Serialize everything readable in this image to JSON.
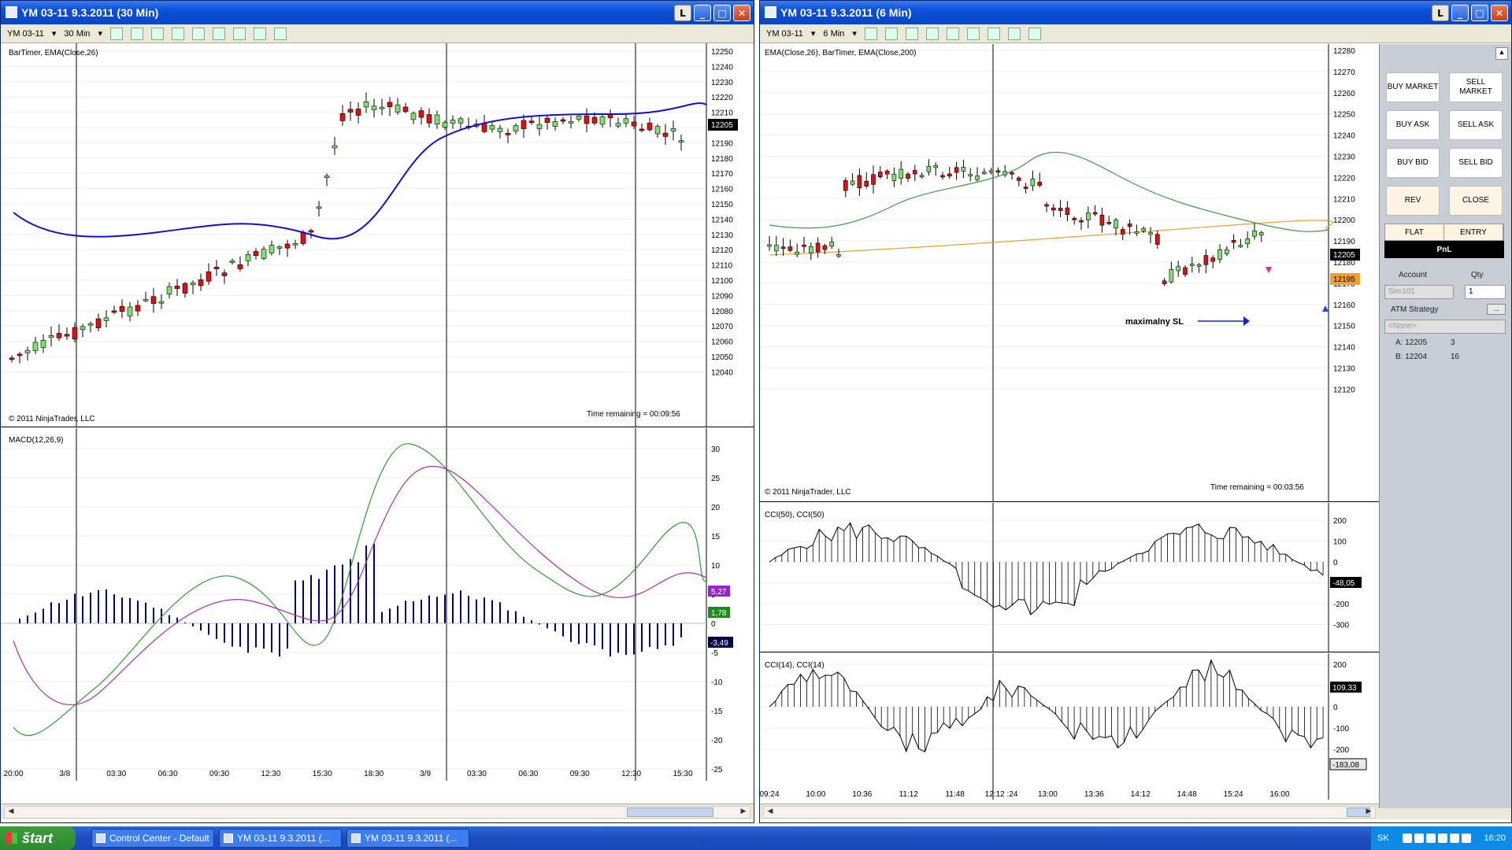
{
  "left_window": {
    "title": "YM 03-11  9.3.2011 (30 Min)",
    "toolbar": {
      "instrument": "YM 03-11",
      "interval": "30 Min"
    },
    "price_panel": {
      "indicator_label": "BarTimer, EMA(Close,26)",
      "copyright": "© 2011 NinjaTrader, LLC",
      "time_remaining": "Time remaining = 00:09:56",
      "y_ticks": [
        "12250",
        "12240",
        "12230",
        "12220",
        "12210",
        "12200",
        "12190",
        "12180",
        "12170",
        "12160",
        "12150",
        "12140",
        "12130",
        "12120",
        "12110",
        "12100",
        "12090",
        "12080",
        "12070",
        "12060",
        "12050",
        "12040"
      ],
      "last_price": "12205"
    },
    "macd_panel": {
      "label": "MACD(12,26,9)",
      "y_ticks": [
        "30",
        "25",
        "20",
        "15",
        "10",
        "5",
        "0",
        "-5",
        "-10",
        "-15",
        "-20",
        "-25"
      ],
      "badges": {
        "avg": "5,27",
        "macd": "1,78",
        "diff": "-3,49"
      }
    },
    "x_ticks": [
      "20:00",
      "3/8",
      "03:30",
      "06:30",
      "09:30",
      "12:30",
      "15:30",
      "18:30",
      "3/9",
      "03:30",
      "06:30",
      "09:30",
      "12:30",
      "15:30"
    ]
  },
  "right_window": {
    "title": "YM 03-11  9.3.2011 (6 Min)",
    "toolbar": {
      "instrument": "YM 03-11",
      "interval": "6 Min"
    },
    "price_panel": {
      "indicator_label": "EMA(Close,26), BarTimer, EMA(Close,200)",
      "copyright": "© 2011 NinjaTrader, LLC",
      "time_remaining": "Time remaining = 00:03:56",
      "annotation": "maximalny SL",
      "y_ticks": [
        "12280",
        "12270",
        "12260",
        "12250",
        "12240",
        "12230",
        "12220",
        "12210",
        "12200",
        "12190",
        "12180",
        "12170",
        "12160",
        "12150",
        "12140",
        "12130",
        "12120"
      ],
      "last_price": "12205",
      "ema200_price": "12195"
    },
    "cci50_panel": {
      "label": "CCI(50), CCI(50)",
      "y_ticks": [
        "200",
        "100",
        "0",
        "-100",
        "-200",
        "-300"
      ],
      "badge": "-48,05"
    },
    "cci14_panel": {
      "label": "CCI(14), CCI(14)",
      "y_ticks": [
        "200",
        "100",
        "0",
        "-100",
        "-200"
      ],
      "badges": {
        "top": "109,33",
        "bottom": "-183,08"
      }
    },
    "x_ticks": [
      "09:24",
      "10:00",
      "10:36",
      "11:12",
      "11:48",
      "12:12 :24",
      "13:00",
      "13:36",
      "14:12",
      "14:48",
      "15:24",
      "16:00"
    ]
  },
  "order_panel": {
    "buttons": {
      "buy_market": "BUY MARKET",
      "sell_market": "SELL MARKET",
      "buy_ask": "BUY ASK",
      "sell_ask": "SELL ASK",
      "buy_bid": "BUY BID",
      "sell_bid": "SELL BID",
      "rev": "REV",
      "close": "CLOSE",
      "flat": "FLAT",
      "entry": "ENTRY"
    },
    "pnl": "PnL",
    "account_label": "Account",
    "account_value": "Sim101",
    "qty_label": "Qty",
    "qty_value": "1",
    "atm_label": "ATM Strategy",
    "atm_value": "<None>",
    "ask": {
      "label": "A: 12205",
      "size": "3"
    },
    "bid": {
      "label": "B: 12204",
      "size": "16"
    }
  },
  "taskbar": {
    "start": "štart",
    "tasks": [
      "Control Center - Default",
      "YM 03-11  9.3.2011 (...",
      "YM 03-11  9.3.2011 (..."
    ],
    "lang": "SK",
    "clock": "16:20"
  }
}
